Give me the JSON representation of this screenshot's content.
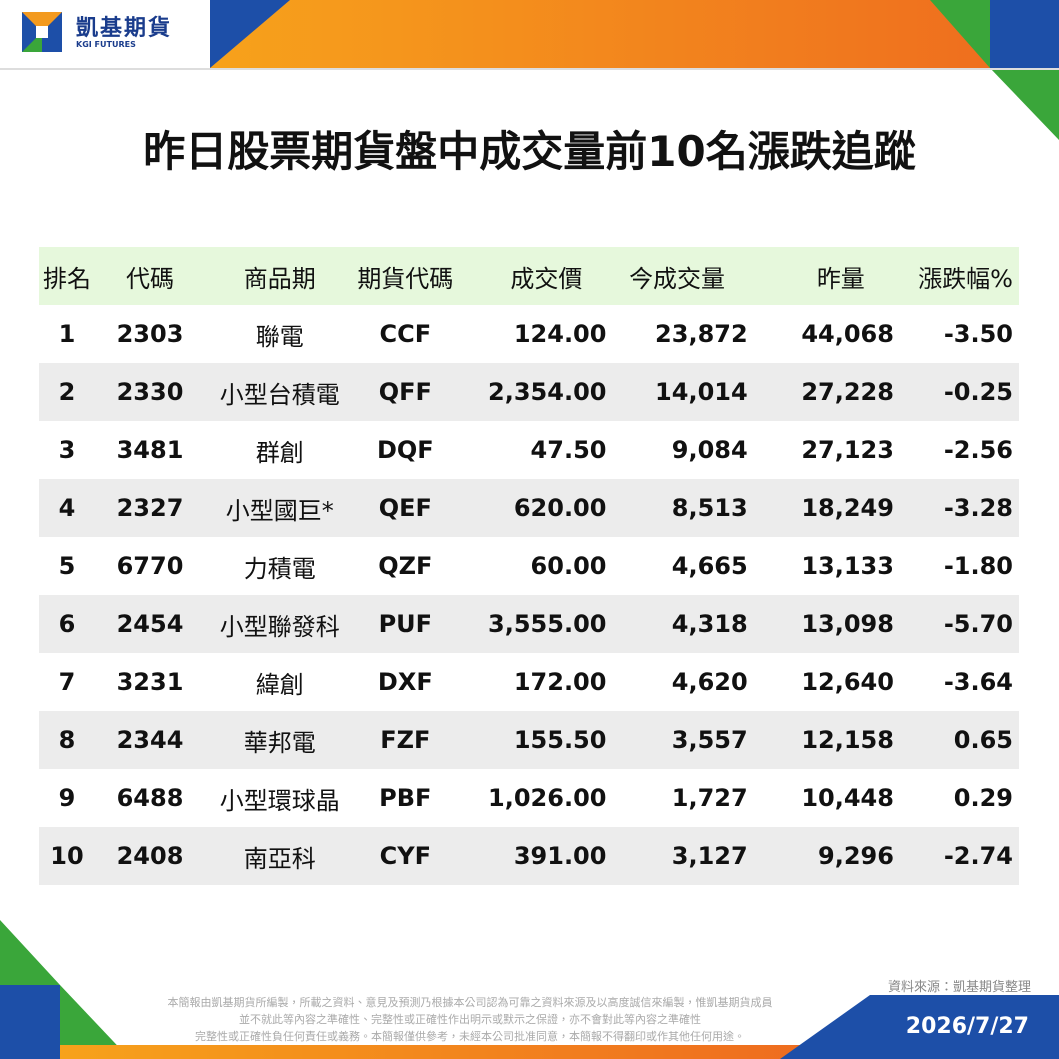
{
  "header": {
    "brand": "凱基期貨",
    "brand_en": "KGI FUTURES"
  },
  "title": "昨日股票期貨盤中成交量前10名漲跌追蹤",
  "table": {
    "columns": [
      "排名",
      "代碼",
      "商品期",
      "期貨代碼",
      "成交價",
      "今成交量",
      "昨量",
      "漲跌幅%"
    ],
    "rows": [
      [
        "1",
        "2303",
        "聯電",
        "CCF",
        "124.00",
        "23,872",
        "44,068",
        "-3.50"
      ],
      [
        "2",
        "2330",
        "小型台積電",
        "QFF",
        "2,354.00",
        "14,014",
        "27,228",
        "-0.25"
      ],
      [
        "3",
        "3481",
        "群創",
        "DQF",
        "47.50",
        "9,084",
        "27,123",
        "-2.56"
      ],
      [
        "4",
        "2327",
        "小型國巨*",
        "QEF",
        "620.00",
        "8,513",
        "18,249",
        "-3.28"
      ],
      [
        "5",
        "6770",
        "力積電",
        "QZF",
        "60.00",
        "4,665",
        "13,133",
        "-1.80"
      ],
      [
        "6",
        "2454",
        "小型聯發科",
        "PUF",
        "3,555.00",
        "4,318",
        "13,098",
        "-5.70"
      ],
      [
        "7",
        "3231",
        "緯創",
        "DXF",
        "172.00",
        "4,620",
        "12,640",
        "-3.64"
      ],
      [
        "8",
        "2344",
        "華邦電",
        "FZF",
        "155.50",
        "3,557",
        "12,158",
        "0.65"
      ],
      [
        "9",
        "6488",
        "小型環球晶",
        "PBF",
        "1,026.00",
        "1,727",
        "10,448",
        "0.29"
      ],
      [
        "10",
        "2408",
        "南亞科",
        "CYF",
        "391.00",
        "3,127",
        "9,296",
        "-2.74"
      ]
    ]
  },
  "source": "資料來源：凱基期貨整理",
  "disclaimer": [
    "本簡報由凱基期貨所編製，所載之資料、意見及預測乃根據本公司認為可靠之資料來源及以高度誠信來編製，惟凱基期貨成員",
    "並不就此等內容之準確性、完整性或正確性作出明示或默示之保證，亦不會對此等內容之準確性",
    "完整性或正確性負任何責任或義務。本簡報僅供參考，未經本公司批准同意，本簡報不得翻印或作其他任何用途。"
  ],
  "date": "2026/7/27"
}
